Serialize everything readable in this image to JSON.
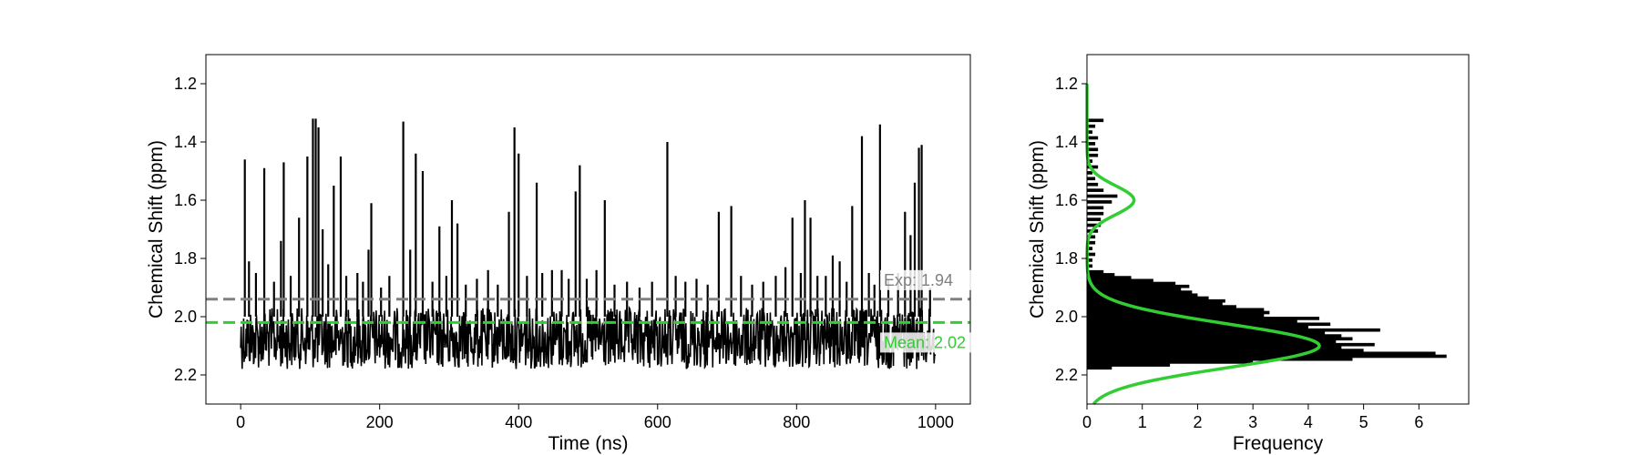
{
  "colors": {
    "trace": "#000000",
    "histogram": "#000000",
    "exp_line": "#808080",
    "mean_line": "#32cd32",
    "fit_curve": "#32cd32",
    "axes": "#000000",
    "background": "#ffffff"
  },
  "chart_data": [
    {
      "type": "line",
      "title": "",
      "xlabel": "Time (ns)",
      "ylabel": "Chemical Shift (ppm)",
      "xlim": [
        -50,
        1050
      ],
      "ylim": [
        2.3,
        1.1
      ],
      "y_inverted": true,
      "grid": false,
      "xticks": [
        0,
        200,
        400,
        600,
        800,
        1000
      ],
      "xtick_labels": [
        "0",
        "200",
        "400",
        "600",
        "800",
        "1000"
      ],
      "yticks": [
        1.2,
        1.4,
        1.6,
        1.8,
        2.0,
        2.2
      ],
      "ytick_labels": [
        "1.2",
        "1.4",
        "1.6",
        "1.8",
        "2.0",
        "2.2"
      ],
      "series": [
        {
          "kind": "trace",
          "x_range": [
            0,
            1000
          ],
          "baseline_band": [
            1.93,
            2.18
          ],
          "spikes": [
            {
              "t": 6,
              "v": 1.46
            },
            {
              "t": 12,
              "v": 1.81
            },
            {
              "t": 22,
              "v": 1.85
            },
            {
              "t": 34,
              "v": 1.49
            },
            {
              "t": 48,
              "v": 1.88
            },
            {
              "t": 58,
              "v": 1.74
            },
            {
              "t": 62,
              "v": 1.47
            },
            {
              "t": 72,
              "v": 1.86
            },
            {
              "t": 84,
              "v": 1.66
            },
            {
              "t": 96,
              "v": 1.45
            },
            {
              "t": 104,
              "v": 1.32
            },
            {
              "t": 108,
              "v": 1.32
            },
            {
              "t": 112,
              "v": 1.35
            },
            {
              "t": 118,
              "v": 1.7
            },
            {
              "t": 126,
              "v": 1.82
            },
            {
              "t": 134,
              "v": 1.55
            },
            {
              "t": 144,
              "v": 1.45
            },
            {
              "t": 152,
              "v": 1.86
            },
            {
              "t": 168,
              "v": 1.85
            },
            {
              "t": 176,
              "v": 1.88
            },
            {
              "t": 184,
              "v": 1.77
            },
            {
              "t": 188,
              "v": 1.61
            },
            {
              "t": 202,
              "v": 1.9
            },
            {
              "t": 214,
              "v": 1.86
            },
            {
              "t": 234,
              "v": 1.33
            },
            {
              "t": 244,
              "v": 1.77
            },
            {
              "t": 252,
              "v": 1.44
            },
            {
              "t": 262,
              "v": 1.5
            },
            {
              "t": 276,
              "v": 1.88
            },
            {
              "t": 286,
              "v": 1.69
            },
            {
              "t": 296,
              "v": 1.86
            },
            {
              "t": 304,
              "v": 1.6
            },
            {
              "t": 312,
              "v": 1.68
            },
            {
              "t": 324,
              "v": 1.89
            },
            {
              "t": 340,
              "v": 1.87
            },
            {
              "t": 356,
              "v": 1.84
            },
            {
              "t": 370,
              "v": 1.89
            },
            {
              "t": 386,
              "v": 1.64
            },
            {
              "t": 394,
              "v": 1.35
            },
            {
              "t": 400,
              "v": 1.44
            },
            {
              "t": 412,
              "v": 1.86
            },
            {
              "t": 426,
              "v": 1.54
            },
            {
              "t": 434,
              "v": 1.85
            },
            {
              "t": 448,
              "v": 1.84
            },
            {
              "t": 462,
              "v": 1.84
            },
            {
              "t": 472,
              "v": 1.87
            },
            {
              "t": 482,
              "v": 1.57
            },
            {
              "t": 488,
              "v": 1.48
            },
            {
              "t": 498,
              "v": 1.87
            },
            {
              "t": 512,
              "v": 1.84
            },
            {
              "t": 524,
              "v": 1.6
            },
            {
              "t": 538,
              "v": 1.89
            },
            {
              "t": 556,
              "v": 1.88
            },
            {
              "t": 574,
              "v": 1.9
            },
            {
              "t": 592,
              "v": 1.88
            },
            {
              "t": 614,
              "v": 1.4
            },
            {
              "t": 626,
              "v": 1.86
            },
            {
              "t": 640,
              "v": 1.88
            },
            {
              "t": 656,
              "v": 1.87
            },
            {
              "t": 672,
              "v": 1.89
            },
            {
              "t": 688,
              "v": 1.64
            },
            {
              "t": 706,
              "v": 1.62
            },
            {
              "t": 720,
              "v": 1.86
            },
            {
              "t": 736,
              "v": 1.89
            },
            {
              "t": 752,
              "v": 1.88
            },
            {
              "t": 770,
              "v": 1.86
            },
            {
              "t": 784,
              "v": 1.83
            },
            {
              "t": 794,
              "v": 1.66
            },
            {
              "t": 806,
              "v": 1.85
            },
            {
              "t": 812,
              "v": 1.6
            },
            {
              "t": 820,
              "v": 1.66
            },
            {
              "t": 830,
              "v": 1.86
            },
            {
              "t": 842,
              "v": 1.86
            },
            {
              "t": 852,
              "v": 1.79
            },
            {
              "t": 862,
              "v": 1.81
            },
            {
              "t": 872,
              "v": 1.88
            },
            {
              "t": 880,
              "v": 1.62
            },
            {
              "t": 894,
              "v": 1.38
            },
            {
              "t": 904,
              "v": 1.85
            },
            {
              "t": 912,
              "v": 1.89
            },
            {
              "t": 920,
              "v": 1.34
            },
            {
              "t": 932,
              "v": 1.87
            },
            {
              "t": 946,
              "v": 1.85
            },
            {
              "t": 956,
              "v": 1.64
            },
            {
              "t": 964,
              "v": 1.72
            },
            {
              "t": 970,
              "v": 1.54
            },
            {
              "t": 976,
              "v": 1.42
            },
            {
              "t": 980,
              "v": 1.41
            },
            {
              "t": 992,
              "v": 1.9
            }
          ]
        }
      ],
      "reference_lines": [
        {
          "name": "Exp",
          "value": 1.94,
          "label": "Exp: 1.94",
          "style": "dashed"
        },
        {
          "name": "Mean",
          "value": 2.02,
          "label": "Mean: 2.02",
          "style": "dashed"
        }
      ]
    },
    {
      "type": "bar",
      "orientation": "horizontal",
      "title": "",
      "xlabel": "Frequency",
      "ylabel": "Chemical Shift (ppm)",
      "xlim": [
        0,
        6.9
      ],
      "ylim": [
        2.3,
        1.1
      ],
      "y_inverted": true,
      "grid": false,
      "xticks": [
        0,
        1,
        2,
        3,
        4,
        5,
        6
      ],
      "xtick_labels": [
        "0",
        "1",
        "2",
        "3",
        "4",
        "5",
        "6"
      ],
      "yticks": [
        1.2,
        1.4,
        1.6,
        1.8,
        2.0,
        2.2
      ],
      "ytick_labels": [
        "1.2",
        "1.4",
        "1.6",
        "1.8",
        "2.0",
        "2.2"
      ],
      "bin_width": 0.0095,
      "histogram": [
        [
          1.325,
          0.3
        ],
        [
          1.345,
          0.15
        ],
        [
          1.365,
          0.1
        ],
        [
          1.385,
          0.2
        ],
        [
          1.405,
          0.15
        ],
        [
          1.425,
          0.2
        ],
        [
          1.445,
          0.2
        ],
        [
          1.465,
          0.1
        ],
        [
          1.485,
          0.2
        ],
        [
          1.505,
          0.1
        ],
        [
          1.525,
          0.15
        ],
        [
          1.545,
          0.2
        ],
        [
          1.565,
          0.3
        ],
        [
          1.585,
          0.55
        ],
        [
          1.605,
          0.45
        ],
        [
          1.625,
          0.3
        ],
        [
          1.645,
          0.3
        ],
        [
          1.665,
          0.25
        ],
        [
          1.685,
          0.25
        ],
        [
          1.705,
          0.2
        ],
        [
          1.725,
          0.15
        ],
        [
          1.745,
          0.15
        ],
        [
          1.765,
          0.1
        ],
        [
          1.785,
          0.15
        ],
        [
          1.805,
          0.1
        ],
        [
          1.825,
          0.1
        ],
        [
          1.845,
          0.3
        ],
        [
          1.855,
          0.5
        ],
        [
          1.865,
          0.8
        ],
        [
          1.875,
          1.2
        ],
        [
          1.885,
          1.6
        ],
        [
          1.895,
          1.85
        ],
        [
          1.905,
          1.7
        ],
        [
          1.915,
          1.9
        ],
        [
          1.925,
          2.0
        ],
        [
          1.935,
          2.2
        ],
        [
          1.945,
          2.5
        ],
        [
          1.955,
          2.45
        ],
        [
          1.965,
          2.7
        ],
        [
          1.975,
          3.2
        ],
        [
          1.985,
          3.3
        ],
        [
          1.995,
          3.2
        ],
        [
          2.005,
          4.2
        ],
        [
          2.015,
          3.8
        ],
        [
          2.025,
          4.4
        ],
        [
          2.035,
          4.0
        ],
        [
          2.045,
          5.3
        ],
        [
          2.055,
          4.3
        ],
        [
          2.065,
          4.6
        ],
        [
          2.075,
          4.8
        ],
        [
          2.085,
          4.5
        ],
        [
          2.095,
          5.2
        ],
        [
          2.105,
          4.6
        ],
        [
          2.115,
          5.0
        ],
        [
          2.125,
          6.3
        ],
        [
          2.135,
          6.5
        ],
        [
          2.145,
          4.8
        ],
        [
          2.155,
          3.0
        ],
        [
          2.165,
          1.5
        ],
        [
          2.175,
          0.45
        ]
      ],
      "fit_curve": {
        "kind": "two-gaussian mixture",
        "components": [
          {
            "mu": 1.6,
            "sigma": 0.05,
            "amplitude": 0.85
          },
          {
            "mu": 2.1,
            "sigma": 0.075,
            "amplitude": 4.2
          }
        ],
        "y_range": [
          1.2,
          2.3
        ]
      }
    }
  ]
}
